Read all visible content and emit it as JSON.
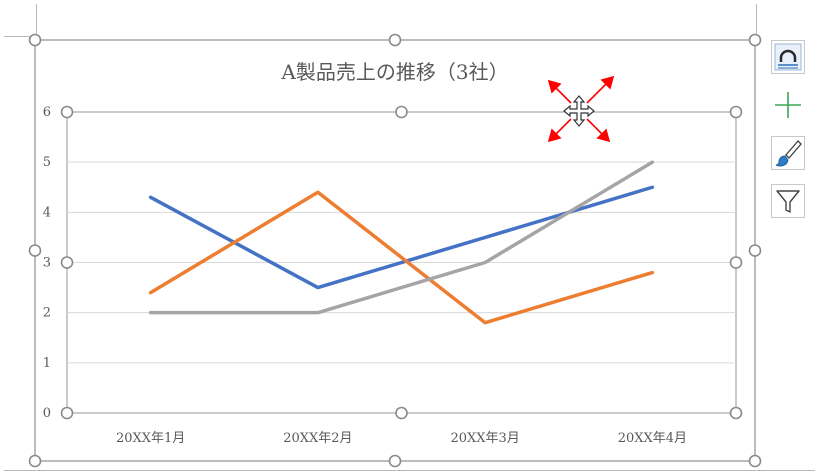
{
  "chart_data": {
    "type": "line",
    "title": "A製品売上の推移（3社）",
    "categories": [
      "20XX年1月",
      "20XX年2月",
      "20XX年3月",
      "20XX年4月"
    ],
    "y_ticks": [
      "0",
      "1",
      "2",
      "3",
      "4",
      "5",
      "6"
    ],
    "ylim": [
      0,
      6
    ],
    "grid": true,
    "legend": "none",
    "series": [
      {
        "color": "#4472C4",
        "values": [
          4.3,
          2.5,
          3.5,
          4.5
        ]
      },
      {
        "color": "#ED7D31",
        "values": [
          2.4,
          4.4,
          1.8,
          2.8
        ]
      },
      {
        "color": "#A5A5A5",
        "values": [
          2.0,
          2.0,
          3.0,
          5.0
        ]
      }
    ]
  },
  "side_buttons": [
    {
      "icon": "chart-elements-icon"
    },
    {
      "icon": "plus-icon"
    },
    {
      "icon": "brush-icon"
    },
    {
      "icon": "filter-icon"
    }
  ],
  "move_cursor": {
    "icon": "move-cursor-icon",
    "arrow_color": "#FF0000"
  }
}
